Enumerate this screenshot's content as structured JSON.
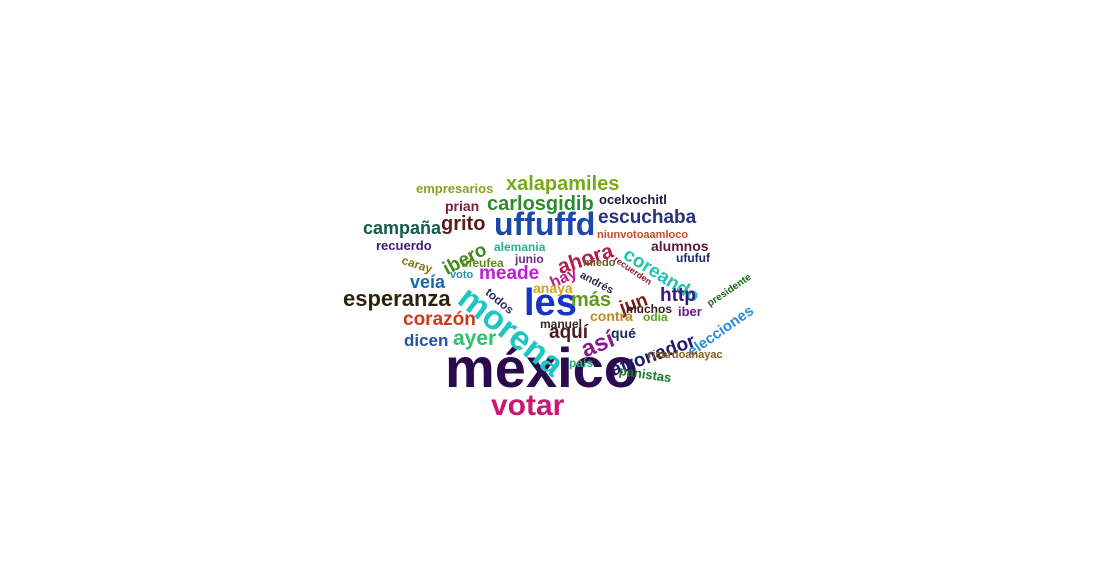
{
  "word_cloud": {
    "words": [
      {
        "text": "méxico",
        "color": "#2b0b4e"
      },
      {
        "text": "votar",
        "color": "#cc1673"
      },
      {
        "text": "les",
        "color": "#1733c8"
      },
      {
        "text": "morena",
        "color": "#1fc5c0"
      },
      {
        "text": "uffuffd",
        "color": "#1a49a8"
      },
      {
        "text": "esperanza",
        "color": "#2b2209"
      },
      {
        "text": "xalapamiles",
        "color": "#79a81a"
      },
      {
        "text": "carlosgidib",
        "color": "#2e8a2e"
      },
      {
        "text": "grito",
        "color": "#5a1e12"
      },
      {
        "text": "escuchaba",
        "color": "#27347a"
      },
      {
        "text": "campaña",
        "color": "#145a48"
      },
      {
        "text": "ibero",
        "color": "#3f8a18"
      },
      {
        "text": "ahora",
        "color": "#b51a4c"
      },
      {
        "text": "coreando",
        "color": "#21c4b4"
      },
      {
        "text": "meade",
        "color": "#c21cd6"
      },
      {
        "text": "veía",
        "color": "#176ab0"
      },
      {
        "text": "corazón",
        "color": "#cc3a1a"
      },
      {
        "text": "ayer",
        "color": "#2fc26c"
      },
      {
        "text": "dicen",
        "color": "#2054a8"
      },
      {
        "text": "más",
        "color": "#5e9a1a"
      },
      {
        "text": "jun",
        "color": "#7e1a1a"
      },
      {
        "text": "http",
        "color": "#3a1882"
      },
      {
        "text": "aquí",
        "color": "#4e1a22"
      },
      {
        "text": "así",
        "color": "#8a1a8a"
      },
      {
        "text": "atronador",
        "color": "#221a6a"
      },
      {
        "text": "elecciones",
        "color": "#2f8ad8"
      },
      {
        "text": "empresarios",
        "color": "#8aa21a"
      },
      {
        "text": "prian",
        "color": "#7e1a36"
      },
      {
        "text": "ocelxochitl",
        "color": "#1a1a3a"
      },
      {
        "text": "recuerdo",
        "color": "#3f1a70"
      },
      {
        "text": "alemania",
        "color": "#29b08a"
      },
      {
        "text": "niunvotoaamloco",
        "color": "#cc4a2a"
      },
      {
        "text": "alumnos",
        "color": "#5a1a3a"
      },
      {
        "text": "ufufuf",
        "color": "#1a2a6a"
      },
      {
        "text": "caray",
        "color": "#7a7a1a"
      },
      {
        "text": "ufeufea",
        "color": "#5a8a1a"
      },
      {
        "text": "junio",
        "color": "#6a2a8a"
      },
      {
        "text": "miedo",
        "color": "#6a5a1a"
      },
      {
        "text": "recuerden",
        "color": "#8a1a2a"
      },
      {
        "text": "hay",
        "color": "#c21a8a"
      },
      {
        "text": "andrés",
        "color": "#2a2a4a"
      },
      {
        "text": "voto",
        "color": "#2a8ab0"
      },
      {
        "text": "anaya",
        "color": "#d4a21a"
      },
      {
        "text": "todos",
        "color": "#2a2a6a"
      },
      {
        "text": "presidente",
        "color": "#1a6a1a"
      },
      {
        "text": "muchos",
        "color": "#3a1a1a"
      },
      {
        "text": "iber",
        "color": "#6a1a8a"
      },
      {
        "text": "contra",
        "color": "#c2881a"
      },
      {
        "text": "odia",
        "color": "#5aa21a"
      },
      {
        "text": "manuel",
        "color": "#3a2a1a"
      },
      {
        "text": "qué",
        "color": "#1a2a5a"
      },
      {
        "text": "país",
        "color": "#2ab07a"
      },
      {
        "text": "ricardoanayac",
        "color": "#8a5a1a"
      },
      {
        "text": "panistas",
        "color": "#1a7a2a"
      }
    ]
  }
}
